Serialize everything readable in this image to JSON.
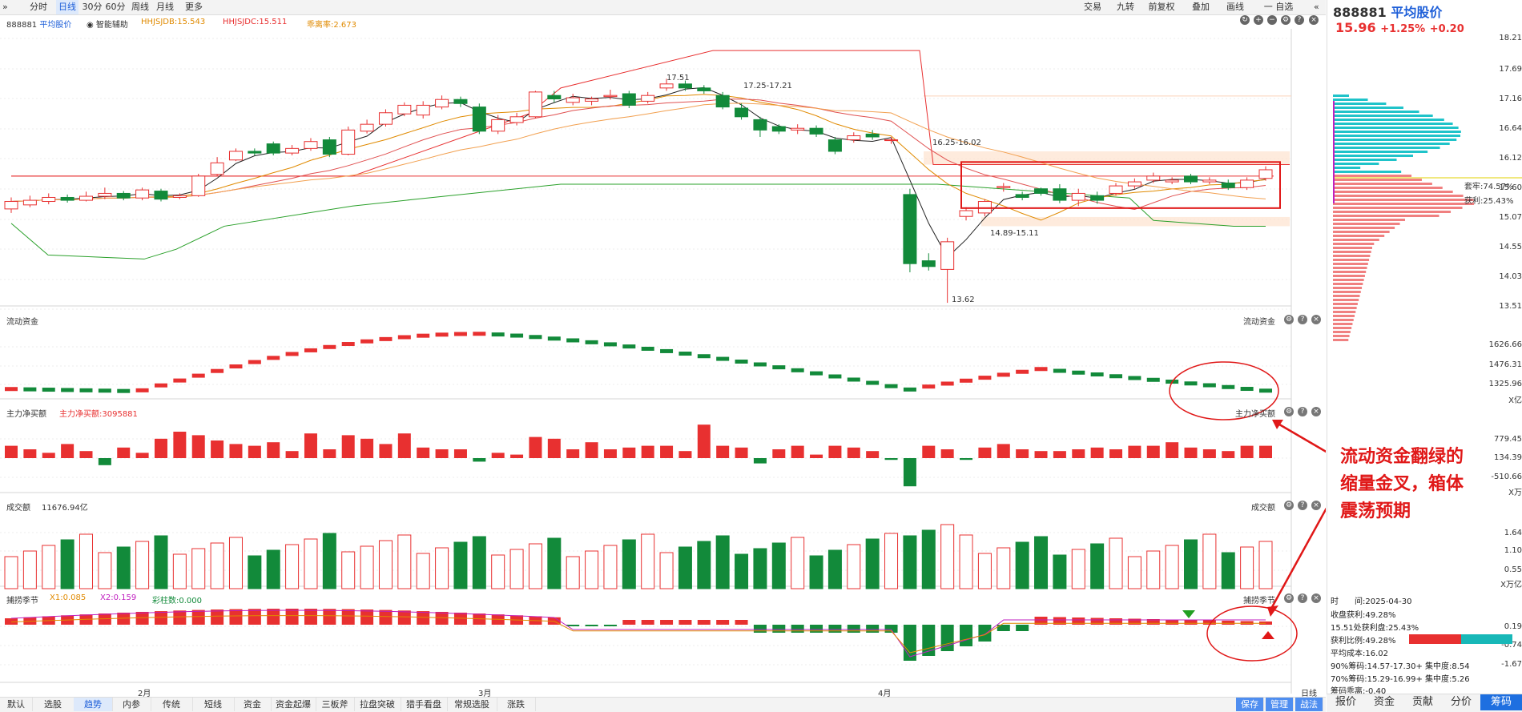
{
  "toolbar": {
    "left": [
      "分时",
      "日线",
      "30分",
      "60分",
      "周线",
      "月线",
      "更多"
    ],
    "active": "日线",
    "right": [
      "交易",
      "九转",
      "前复权",
      "叠加",
      "画线",
      "一 自选"
    ]
  },
  "stock": {
    "code": "888881",
    "name": "平均股价",
    "price": "15.96",
    "change_pct": "+1.25%",
    "change": "+0.20"
  },
  "main_legend": {
    "aux": "智能辅助",
    "hhjsjdb": "HHJSJDB:15.543",
    "hhjsjdc": "HHJSJDC:15.511",
    "deviation": "乖离率:2.673"
  },
  "main_axis": [
    "18.21",
    "17.69",
    "17.16",
    "16.64",
    "16.12",
    "15.60",
    "15.07",
    "14.55",
    "14.03",
    "13.51"
  ],
  "annotations": {
    "hi": "17.51",
    "hi_range": "17.25-17.21",
    "mid_range": "16.25-16.02",
    "low_range": "14.89-15.11",
    "low": "13.62"
  },
  "flow": {
    "title": "流动资金",
    "axis": [
      "1626.66",
      "1476.31",
      "1325.96"
    ],
    "unit": "X亿"
  },
  "net": {
    "title": "主力净买额",
    "value_label": "主力净买额:3095881",
    "axis": [
      "779.45",
      "134.39",
      "-510.66"
    ],
    "unit": "X万"
  },
  "amount": {
    "title": "成交额",
    "value": "11676.94亿",
    "axis": [
      "1.64",
      "1.10",
      "0.55"
    ],
    "unit": "X万亿"
  },
  "season": {
    "title": "捕捞季节",
    "x1": "X1:0.085",
    "x2": "X2:0.159",
    "bars": "彩柱数:0.000",
    "axis": [
      "0.19",
      "-0.74",
      "-1.67"
    ]
  },
  "months": [
    "2月",
    "3月",
    "4月"
  ],
  "xaxis_right": "日线",
  "callout": [
    "流动资金翻绿的",
    "缩量金叉，箱体",
    "震荡预期"
  ],
  "chip": {
    "trapped": "套牢:74.57%",
    "profit": "获利:25.43%"
  },
  "info": {
    "time_label": "时　　间:",
    "time": "2025-04-30",
    "close_profit": "收盘获利:49.28%",
    "price_profit": "15.51处获利盘:25.43%",
    "profit_ratio": "获利比例:49.28%",
    "avg_cost": "平均成本:16.02",
    "chip90": "90%筹码:14.57-17.30+ 集中度:8.54",
    "chip70": "70%筹码:15.29-16.99+ 集中度:5.26",
    "deviation": "筹码乖离:-0.40"
  },
  "bottom_tabs": [
    "默认",
    "选股",
    "趋势",
    "内参",
    "传统",
    "短线",
    "资金",
    "资金起爆",
    "三板斧",
    "拉盘突破",
    "猎手看盘",
    "常规选股",
    "涨跌"
  ],
  "bottom_active": "趋势",
  "bottom_right": [
    "保存",
    "管理",
    "战法"
  ],
  "right_tabs": [
    "报价",
    "资金",
    "贡献",
    "分价",
    "筹码"
  ],
  "right_active": "筹码",
  "colors": {
    "up": "#e83030",
    "down": "#128a3a",
    "accent": "#1e5fd8"
  },
  "candles": [
    [
      15.25,
      15.38,
      15.45,
      15.18
    ],
    [
      15.32,
      15.4,
      15.48,
      15.28
    ],
    [
      15.38,
      15.45,
      15.52,
      15.33
    ],
    [
      15.45,
      15.4,
      15.5,
      15.36
    ],
    [
      15.4,
      15.47,
      15.55,
      15.38
    ],
    [
      15.47,
      15.52,
      15.62,
      15.42
    ],
    [
      15.52,
      15.44,
      15.56,
      15.4
    ],
    [
      15.44,
      15.58,
      15.62,
      15.4
    ],
    [
      15.56,
      15.42,
      15.6,
      15.38
    ],
    [
      15.45,
      15.48,
      15.52,
      15.42
    ],
    [
      15.48,
      15.82,
      15.86,
      15.46
    ],
    [
      15.85,
      16.05,
      16.15,
      15.82
    ],
    [
      16.1,
      16.25,
      16.3,
      16.08
    ],
    [
      16.25,
      16.22,
      16.3,
      16.18
    ],
    [
      16.38,
      16.22,
      16.42,
      16.18
    ],
    [
      16.22,
      16.3,
      16.36,
      16.18
    ],
    [
      16.3,
      16.42,
      16.48,
      16.26
    ],
    [
      16.45,
      16.2,
      16.5,
      16.15
    ],
    [
      16.2,
      16.62,
      16.68,
      16.18
    ],
    [
      16.6,
      16.72,
      16.8,
      16.56
    ],
    [
      16.72,
      16.92,
      16.98,
      16.68
    ],
    [
      16.9,
      17.05,
      17.1,
      16.86
    ],
    [
      16.88,
      17.05,
      17.12,
      16.82
    ],
    [
      17.02,
      17.15,
      17.22,
      16.98
    ],
    [
      17.15,
      17.08,
      17.2,
      17.02
    ],
    [
      17.02,
      16.6,
      17.08,
      16.55
    ],
    [
      16.6,
      16.8,
      16.88,
      16.55
    ],
    [
      16.75,
      16.85,
      16.92,
      16.7
    ],
    [
      16.85,
      17.28,
      17.3,
      16.82
    ],
    [
      17.22,
      17.16,
      17.3,
      17.1
    ],
    [
      17.1,
      17.18,
      17.25,
      17.05
    ],
    [
      17.12,
      17.16,
      17.2,
      17.05
    ],
    [
      17.2,
      17.22,
      17.32,
      17.15
    ],
    [
      17.25,
      17.05,
      17.3,
      17.0
    ],
    [
      17.12,
      17.22,
      17.28,
      17.08
    ],
    [
      17.35,
      17.42,
      17.51,
      17.3
    ],
    [
      17.42,
      17.35,
      17.48,
      17.3
    ],
    [
      17.35,
      17.3,
      17.4,
      17.25
    ],
    [
      17.22,
      17.02,
      17.28,
      16.98
    ],
    [
      17.0,
      16.85,
      17.08,
      16.8
    ],
    [
      16.8,
      16.62,
      16.85,
      16.5
    ],
    [
      16.68,
      16.6,
      16.72,
      16.55
    ],
    [
      16.62,
      16.65,
      16.72,
      16.55
    ],
    [
      16.65,
      16.55,
      16.7,
      16.5
    ],
    [
      16.45,
      16.25,
      16.5,
      16.2
    ],
    [
      16.45,
      16.52,
      16.58,
      16.4
    ],
    [
      16.55,
      16.5,
      16.62,
      16.45
    ],
    [
      16.45,
      16.45,
      16.5,
      16.38
    ],
    [
      15.5,
      14.3,
      15.6,
      14.15
    ],
    [
      14.35,
      14.25,
      14.48,
      14.18
    ],
    [
      14.2,
      14.68,
      14.75,
      13.62
    ],
    [
      15.12,
      15.22,
      15.28,
      15.05
    ],
    [
      15.18,
      15.38,
      15.42,
      15.12
    ],
    [
      15.62,
      15.64,
      15.7,
      15.55
    ],
    [
      15.5,
      15.45,
      15.55,
      15.4
    ],
    [
      15.6,
      15.52,
      15.62,
      15.48
    ],
    [
      15.6,
      15.4,
      15.68,
      15.35
    ],
    [
      15.4,
      15.52,
      15.6,
      15.3
    ],
    [
      15.48,
      15.4,
      15.55,
      15.34
    ],
    [
      15.52,
      15.65,
      15.7,
      15.48
    ],
    [
      15.65,
      15.72,
      15.78,
      15.6
    ],
    [
      15.75,
      15.82,
      15.88,
      15.7
    ],
    [
      15.72,
      15.75,
      15.8,
      15.68
    ],
    [
      15.82,
      15.72,
      15.86,
      15.68
    ],
    [
      15.72,
      15.75,
      15.8,
      15.68
    ],
    [
      15.7,
      15.62,
      15.76,
      15.58
    ],
    [
      15.62,
      15.75,
      15.8,
      15.58
    ],
    [
      15.78,
      15.93,
      15.99,
      15.74
    ]
  ]
}
